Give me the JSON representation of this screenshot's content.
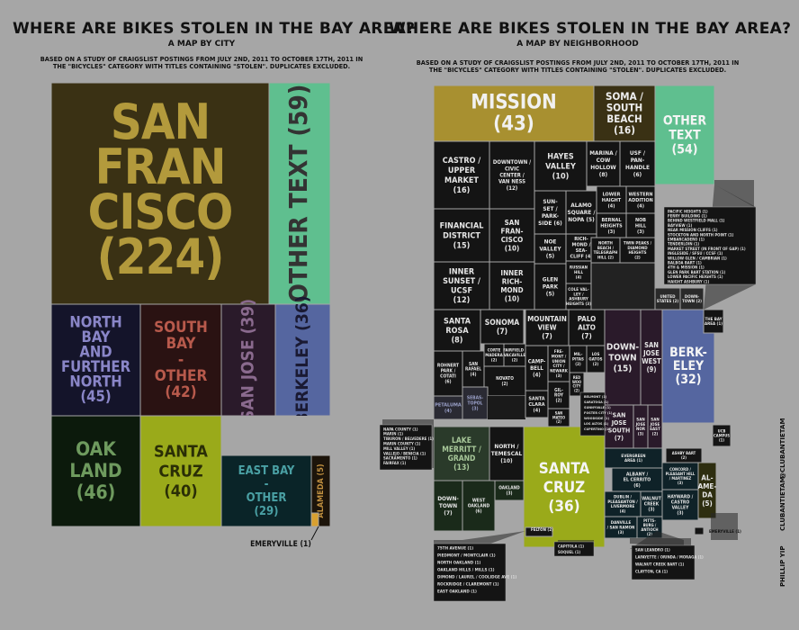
{
  "left": {
    "title": "WHERE ARE BIKES STOLEN IN THE BAY AREA?",
    "subtitle": "A MAP BY CITY",
    "note_line1": "BASED ON A STUDY OF CRAIGSLIST POSTINGS FROM JULY 2ND, 2011 TO OCTOBER 17TH, 2011 IN",
    "note_line2": "THE \"BICYCLES\" CATEGORY WITH TITLES CONTAINING \"STOLEN\".  DUPLICATES EXCLUDED.",
    "callout_emeryville": "EMERYVILLE (1)"
  },
  "right": {
    "title": "WHERE ARE BIKES STOLEN IN THE BAY AREA?",
    "subtitle": "A MAP BY NEIGHBORHOOD",
    "note_line1": "BASED ON A STUDY OF CRAIGSLIST POSTINGS FROM JULY 2ND, 2011 TO OCTOBER 17TH, 2011 IN",
    "note_line2": "THE \"BICYCLES\" CATEGORY WITH TITLES CONTAINING \"STOLEN\".  DUPLICATES EXCLUDED.",
    "other_text_list": [
      "PACIFIC HEIGHTS (1)",
      "FERRY BUILDING (1)",
      "BEHIND WESTFIELD MALL (1)",
      "BAYVIEW (1)",
      "NEAR MISSION CLIFFS (1)",
      "STOCKTON AND NORTH POINT (1)",
      "EMBARCADERO (1)",
      "TENDERLOIN (1)",
      "MARKET STREET (IN FRONT OF GAP) (1)",
      "INGLESIDE / SFSU / CCSF (1)",
      "WILLOW GLEN / CAMBRIAN (1)",
      "BALBOA BART (1)",
      "4TH & MISSION (1)",
      "GLEN PARK BART STATION (1)",
      "LOWER PACIFIC HEIGHTS (1)",
      "HAIGHT ASHBURY (1)"
    ],
    "north_bay_list": [
      "NAPA COUNTY (1)",
      "MARIN (1)",
      "TIBURON / BELVEDERE (1)",
      "MARIN COUNTY (1)",
      "MILL VALLEY (1)",
      "VALLEJO / BENICIA (1)",
      "SACRAMENTO (1)",
      "FAIRFAX (1)"
    ],
    "oakland_list": [
      "75TH AVENUE (1)",
      "PIEDMONT / MONTCLAIR (1)",
      "NORTH OAKLAND (1)",
      "OAKLAND HILLS / MILLS (1)",
      "DIMOND / LAUREL / COOLIDGE AVE (1)",
      "ROCKRIDGE / CLAREMONT (1)",
      "EAST OAKLAND (1)"
    ],
    "east_bay_list": [
      "SAN LEANDRO (1)",
      "LAFAYETTE / ORINDA / MORAGA (1)",
      "WALNUT CREEK BART (1)",
      "CLAYTON, CA (1)"
    ],
    "santa_cruz_list": [
      "CAPITOLA (1)",
      "SOQUEL (1)"
    ],
    "emeryville": "EMERYVILLE (1)",
    "felton": "FELTON (2)",
    "south_bay_list": [
      "BELMONT (1)",
      "SARATOGA (1)",
      "SUNNYVALE (1)",
      "FOSTER CITY (1)",
      "WOODSIDE (1)",
      "LOS ALTOS (1)",
      "CUPERTINO (1)"
    ],
    "credit1": "PHILLIP YIP",
    "credit2": "CLUBANTIETAM",
    "credit3": "@CLUBANTIETAM"
  },
  "chart_data": [
    {
      "type": "treemap",
      "title": "WHERE ARE BIKES STOLEN IN THE BAY AREA?",
      "subtitle": "A MAP BY CITY",
      "cells": [
        {
          "name": "SAN FRANCISCO",
          "value": 224,
          "color": "#3a3114",
          "text_color": "#b39a3c",
          "lines": [
            "SAN",
            "FRAN",
            "CISCO",
            "(224)"
          ]
        },
        {
          "name": "OTHER TEXT",
          "value": 59,
          "color": "#5fbf8f",
          "text_color": "#333333",
          "lines": [
            "OTHER TEXT (59)"
          ]
        },
        {
          "name": "NORTH BAY AND FURTHER NORTH",
          "value": 45,
          "color": "#14142a",
          "text_color": "#8a86c8",
          "lines": [
            "NORTH",
            "BAY",
            "AND",
            "FURTHER",
            "NORTH",
            "(45)"
          ]
        },
        {
          "name": "SOUTH BAY - OTHER",
          "value": 42,
          "color": "#2a1212",
          "text_color": "#b85a4c",
          "lines": [
            "SOUTH",
            "BAY",
            "-",
            "OTHER",
            "(42)"
          ]
        },
        {
          "name": "SAN JOSE",
          "value": 39,
          "color": "#2a1a2a",
          "text_color": "#8a6a8e",
          "lines": [
            "SAN JOSE (39)"
          ]
        },
        {
          "name": "BERKELEY",
          "value": 36,
          "color": "#5566a0",
          "text_color": "#1a1a33",
          "lines": [
            "BERKELEY (36)"
          ]
        },
        {
          "name": "OAKLAND",
          "value": 46,
          "color": "#0c1a0c",
          "text_color": "#6e9a5e",
          "lines": [
            "OAK",
            "LAND",
            "(46)"
          ]
        },
        {
          "name": "SANTA CRUZ",
          "value": 40,
          "color": "#9aaa1a",
          "text_color": "#2a2e06",
          "lines": [
            "SANTA",
            "CRUZ",
            "(40)"
          ]
        },
        {
          "name": "EAST BAY - OTHER",
          "value": 29,
          "color": "#0a2428",
          "text_color": "#4aa0a4",
          "lines": [
            "EAST BAY",
            "-",
            "OTHER",
            "(29)"
          ]
        },
        {
          "name": "ALAMEDA",
          "value": 5,
          "color": "#1c140a",
          "text_color": "#c09040",
          "lines": [
            "ALAMEDA (5)"
          ]
        },
        {
          "name": "EMERYVILLE",
          "value": 1,
          "color": "#d8a030",
          "text_color": "#111111",
          "lines": [
            "EMERYVILLE (1)"
          ]
        }
      ]
    },
    {
      "type": "treemap",
      "title": "WHERE ARE BIKES STOLEN IN THE BAY AREA?",
      "subtitle": "A MAP BY NEIGHBORHOOD",
      "cells": [
        {
          "name": "MISSION",
          "value": 43,
          "color": "#a89030",
          "lines": [
            "MISSION",
            "(43)"
          ]
        },
        {
          "name": "SOMA / SOUTH BEACH",
          "value": 16,
          "color": "#3a3114",
          "lines": [
            "SOMA /",
            "SOUTH",
            "BEACH",
            "(16)"
          ]
        },
        {
          "name": "OTHER TEXT",
          "value": 54,
          "color": "#5fbf8f",
          "lines": [
            "OTHER",
            "TEXT",
            "(54)"
          ]
        },
        {
          "name": "CASTRO / UPPER MARKET",
          "value": 16,
          "lines": [
            "CASTRO /",
            "UPPER",
            "MARKET",
            "(16)"
          ]
        },
        {
          "name": "DOWNTOWN / CIVIC CENTER / VAN NESS",
          "value": 12,
          "lines": [
            "DOWNTOWN /",
            "CIVIC",
            "CENTER /",
            "VAN NESS",
            "(12)"
          ]
        },
        {
          "name": "HAYES VALLEY",
          "value": 10,
          "lines": [
            "HAYES",
            "VALLEY",
            "(10)"
          ]
        },
        {
          "name": "MARINA / COW HOLLOW",
          "value": 8,
          "lines": [
            "MARINA /",
            "COW",
            "HOLLOW",
            "(8)"
          ]
        },
        {
          "name": "USF / PANHANDLE",
          "value": 6,
          "lines": [
            "USF /",
            "PAN-",
            "HANDLE",
            "(6)"
          ]
        },
        {
          "name": "FINANCIAL DISTRICT",
          "value": 15,
          "lines": [
            "FINANCIAL",
            "DISTRICT",
            "(15)"
          ]
        },
        {
          "name": "SAN FRANCISCO",
          "value": 10,
          "lines": [
            "SAN",
            "FRAN-",
            "CISCO",
            "(10)"
          ]
        },
        {
          "name": "SUNSET / PARKSIDE",
          "value": 6,
          "lines": [
            "SUN-",
            "SET /",
            "PARK-",
            "SIDE (6)"
          ]
        },
        {
          "name": "ALAMO SQUARE / NOPA",
          "value": 5,
          "lines": [
            "ALAMO",
            "SQUARE /",
            "NOPA (5)"
          ]
        },
        {
          "name": "LOWER HAIGHT",
          "value": 4,
          "lines": [
            "LOWER",
            "HAIGHT",
            "(4)"
          ]
        },
        {
          "name": "WESTERN ADDITION",
          "value": 4,
          "lines": [
            "WESTERN",
            "ADDITION",
            "(4)"
          ]
        },
        {
          "name": "RICHMOND / SEA CLIFF",
          "value": 4,
          "lines": [
            "RICH-",
            "MOND /",
            "SEA-",
            "CLIFF (4)"
          ]
        },
        {
          "name": "BERNAL HEIGHTS",
          "value": 3,
          "lines": [
            "BERNAL",
            "HEIGHTS",
            "(3)"
          ]
        },
        {
          "name": "NOB HILL",
          "value": 3,
          "lines": [
            "NOB",
            "HILL",
            "(3)"
          ]
        },
        {
          "name": "NOE VALLEY",
          "value": 5,
          "lines": [
            "NOE",
            "VALLEY",
            "(5)"
          ]
        },
        {
          "name": "NORTH BEACH / TELEGRAPH HILL",
          "value": 2,
          "lines": [
            "NORTH",
            "BEACH /",
            "TELEGRAPH",
            "HILL (2)"
          ]
        },
        {
          "name": "TWIN PEAKS / DIAMOND HEIGHTS",
          "value": 2,
          "lines": [
            "TWIN PEAKS /",
            "DIAMOND",
            "HEIGHTS",
            "(2)"
          ]
        },
        {
          "name": "INNER SUNSET / UCSF",
          "value": 12,
          "lines": [
            "INNER",
            "SUNSET /",
            "UCSF",
            "(12)"
          ]
        },
        {
          "name": "INNER RICHMOND",
          "value": 10,
          "lines": [
            "INNER",
            "RICH-",
            "MOND",
            "(10)"
          ]
        },
        {
          "name": "GLEN PARK",
          "value": 5,
          "lines": [
            "GLEN",
            "PARK",
            "(5)"
          ]
        },
        {
          "name": "RUSSIAN HILL",
          "value": 4,
          "lines": [
            "RUSSIAN",
            "HILL",
            "(4)"
          ]
        },
        {
          "name": "COLE VALLEY / ASHBURY HEIGHTS",
          "value": 3,
          "lines": [
            "COLE VAL-",
            "LEY /",
            "ASHBURY",
            "HEIGHTS (3)"
          ]
        },
        {
          "name": "UNITED STATES",
          "value": 2,
          "lines": [
            "UNITED",
            "STATES (2)"
          ]
        },
        {
          "name": "DOWNTOWN",
          "value": 2,
          "lines": [
            "DOWN-",
            "TOWN (2)"
          ]
        },
        {
          "name": "SANTA ROSA",
          "value": 8,
          "lines": [
            "SANTA",
            "ROSA",
            "(8)"
          ]
        },
        {
          "name": "SONOMA",
          "value": 7,
          "lines": [
            "SONOMA",
            "(7)"
          ]
        },
        {
          "name": "ROHNERT PARK / COTATI",
          "value": 6,
          "lines": [
            "ROHNERT",
            "PARK /",
            "COTATI",
            "(6)"
          ]
        },
        {
          "name": "SAN RAFAEL",
          "value": 4,
          "lines": [
            "SAN",
            "RAFAEL",
            "(4)"
          ]
        },
        {
          "name": "CORTE MADERA",
          "value": 2,
          "lines": [
            "CORTE",
            "MADERA",
            "(2)"
          ]
        },
        {
          "name": "FAIRFIELD / VACAVILLE",
          "value": 2,
          "lines": [
            "FAIRFIELD /",
            "VACAVILLE",
            "(2)"
          ]
        },
        {
          "name": "NOVATO",
          "value": 2,
          "lines": [
            "NOVATO",
            "(2)"
          ]
        },
        {
          "name": "PETALUMA",
          "value": 4,
          "lines": [
            "PETALUMA",
            "(4)"
          ]
        },
        {
          "name": "SEBASTOPOL",
          "value": 3,
          "lines": [
            "SEBAS-",
            "TOPOL",
            "(3)"
          ]
        },
        {
          "name": "MOUNTAIN VIEW",
          "value": 7,
          "lines": [
            "MOUNTAIN",
            "VIEW",
            "(7)"
          ]
        },
        {
          "name": "PALO ALTO",
          "value": 7,
          "lines": [
            "PALO",
            "ALTO",
            "(7)"
          ]
        },
        {
          "name": "DOWNTOWN",
          "value": 15,
          "lines": [
            "DOWN-",
            "TOWN",
            "(15)"
          ]
        },
        {
          "name": "SAN JOSE WEST",
          "value": 9,
          "lines": [
            "SAN",
            "JOSE",
            "WEST",
            "(9)"
          ]
        },
        {
          "name": "BERKELEY",
          "value": 32,
          "color": "#5566a0",
          "lines": [
            "BERK-",
            "ELEY",
            "(32)"
          ]
        },
        {
          "name": "THE BAY AREA",
          "value": 1,
          "lines": [
            "THE BAY",
            "AREA (1)"
          ]
        },
        {
          "name": "CAMPBELL",
          "value": 4,
          "lines": [
            "CAMP-",
            "BELL",
            "(4)"
          ]
        },
        {
          "name": "FREMONT / UNION CITY / NEWARK",
          "value": 3,
          "lines": [
            "FRE-",
            "MONT /",
            "UNION",
            "CITY /",
            "NEWARK",
            "(3)"
          ]
        },
        {
          "name": "MILPITAS",
          "value": 2,
          "lines": [
            "MIL-",
            "PITAS",
            "(2)"
          ]
        },
        {
          "name": "LOS GATOS",
          "value": 2,
          "lines": [
            "LOS",
            "GATOS",
            "(2)"
          ]
        },
        {
          "name": "SANTA CLARA",
          "value": 4,
          "lines": [
            "SANTA",
            "CLARA",
            "(4)"
          ]
        },
        {
          "name": "GILROY",
          "value": 2,
          "lines": [
            "GIL-",
            "ROY",
            "(2)"
          ]
        },
        {
          "name": "REDWOOD CITY",
          "value": 2,
          "lines": [
            "RED",
            "WOO",
            "CITY",
            "(2)"
          ]
        },
        {
          "name": "SAN MATEO",
          "value": 2,
          "lines": [
            "SAN",
            "MATEO",
            "(2)"
          ]
        },
        {
          "name": "SAN JOSE SOUTH",
          "value": 7,
          "lines": [
            "SAN",
            "JOSE",
            "SOUTH",
            "(7)"
          ]
        },
        {
          "name": "SAN JOSE NORTH",
          "value": 3,
          "lines": [
            "SAN",
            "JOSE",
            "NOR",
            "(3)"
          ]
        },
        {
          "name": "SAN JOSE EAST",
          "value": 2,
          "lines": [
            "SAN",
            "JOSE",
            "EAST",
            "(2)"
          ]
        },
        {
          "name": "LAKE MERRITT / GRAND",
          "value": 13,
          "lines": [
            "LAKE",
            "MERRITT /",
            "GRAND",
            "(13)"
          ]
        },
        {
          "name": "NORTH / TEMESCAL",
          "value": 10,
          "lines": [
            "NORTH /",
            "TEMESCAL",
            "(10)"
          ]
        },
        {
          "name": "SANTA CRUZ",
          "value": 36,
          "color": "#9aaa1a",
          "lines": [
            "SANTA",
            "CRUZ",
            "(36)"
          ]
        },
        {
          "name": "DOWNTOWN",
          "value": 7,
          "lines": [
            "DOWN-",
            "TOWN",
            "(7)"
          ]
        },
        {
          "name": "WEST OAKLAND",
          "value": 6,
          "lines": [
            "WEST",
            "OAKLAND",
            "(6)"
          ]
        },
        {
          "name": "OAKLAND",
          "value": 3,
          "lines": [
            "OAKLAND",
            "(3)"
          ]
        },
        {
          "name": "EVERGREEN AREA",
          "value": 1,
          "lines": [
            "EVERGREEN",
            "AREA (1)"
          ]
        },
        {
          "name": "ALBANY / EL CERRITO",
          "value": 6,
          "lines": [
            "ALBANY /",
            "EL CERRITO",
            "(6)"
          ]
        },
        {
          "name": "DUBLIN / PLEASANTON / LIVERMORE",
          "value": 4,
          "lines": [
            "DUBLIN /",
            "PLEASANTON /",
            "LIVERMORE",
            "(4)"
          ]
        },
        {
          "name": "WALNUT CREEK",
          "value": 3,
          "lines": [
            "WALNUT",
            "CREEK",
            "(3)"
          ]
        },
        {
          "name": "DANVILLE / SAN RAMON",
          "value": 3,
          "lines": [
            "DANVILLE",
            "/ SAN RAMON",
            "(3)"
          ]
        },
        {
          "name": "PITTSBURG / ANTIOCH",
          "value": 2,
          "lines": [
            "PITTS-",
            "BURG /",
            "ANTIOCH",
            "(2)"
          ]
        },
        {
          "name": "CONCORD / PLEASANT HILL / MARTINEZ",
          "value": 3,
          "lines": [
            "CONCORD /",
            "PLEASANT HILL",
            "/ MARTINEZ",
            "(3)"
          ]
        },
        {
          "name": "HAYWARD / CASTRO VALLEY",
          "value": 3,
          "lines": [
            "HAYWARD /",
            "CASTRO",
            "VALLEY",
            "(3)"
          ]
        },
        {
          "name": "ALAMEDA",
          "value": 5,
          "lines": [
            "AL-",
            "AME-",
            "DA",
            "(5)"
          ]
        },
        {
          "name": "ASHBY BART",
          "value": 2,
          "lines": [
            "ASHBY BART",
            "(2)"
          ]
        },
        {
          "name": "UCB CAMPUS",
          "value": 1,
          "lines": [
            "UCB",
            "CAMPUS",
            "(1)"
          ]
        },
        {
          "name": "EMERYVILLE",
          "value": 1
        },
        {
          "name": "FELTON",
          "value": 2
        }
      ]
    }
  ]
}
